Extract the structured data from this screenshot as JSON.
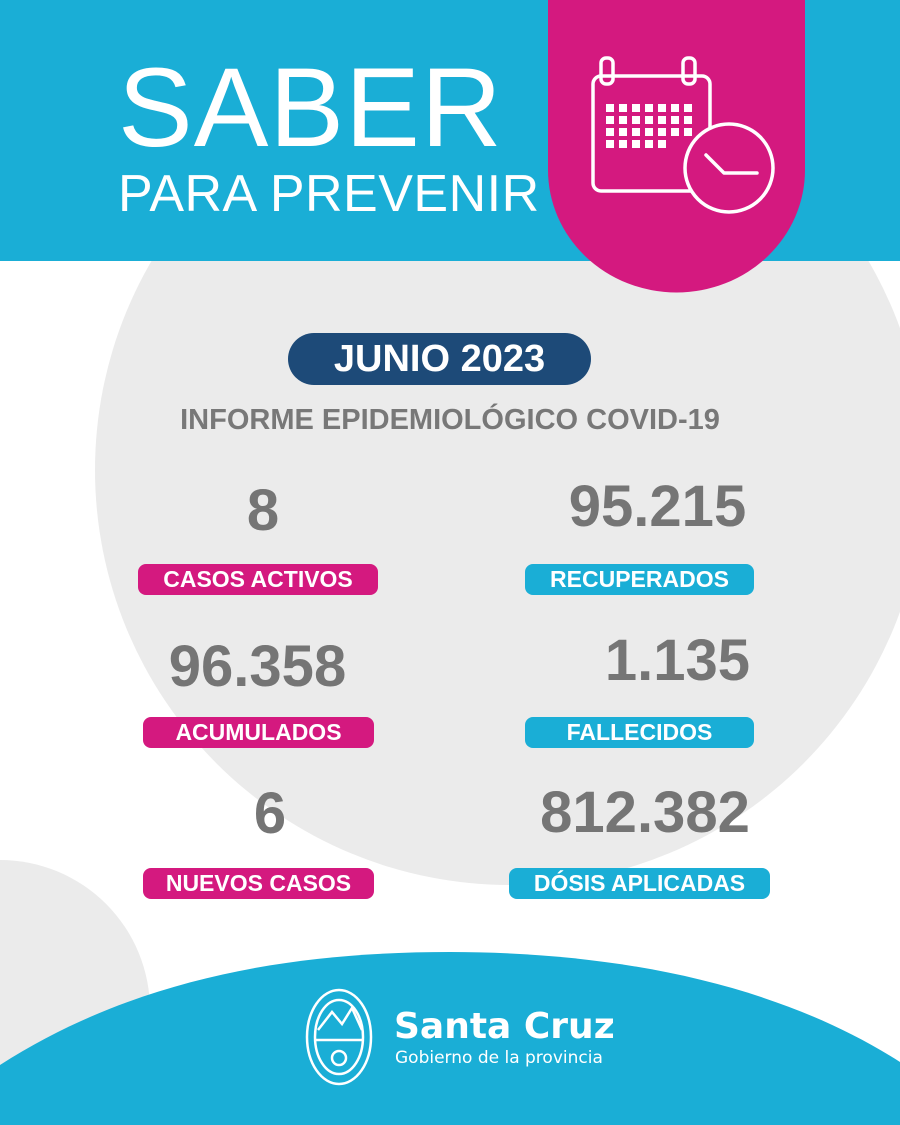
{
  "header": {
    "title": "SABER",
    "subtitle": "PARA PREVENIR"
  },
  "report": {
    "month": "JUNIO 2023",
    "heading": "INFORME EPIDEMIOLÓGICO COVID-19"
  },
  "stats": [
    {
      "value": "8",
      "label": "CASOS ACTIVOS"
    },
    {
      "value": "95.215",
      "label": "RECUPERADOS"
    },
    {
      "value": "96.358",
      "label": "ACUMULADOS"
    },
    {
      "value": "1.135",
      "label": "FALLECIDOS"
    },
    {
      "value": "6",
      "label": "NUEVOS CASOS"
    },
    {
      "value": "812.382",
      "label": "DÓSIS APLICADAS"
    }
  ],
  "footer": {
    "logo_name": "Santa Cruz",
    "logo_sub": "Gobierno de la provincia"
  },
  "icons": {
    "calendar": "calendar-clock-icon",
    "seal": "provincial-seal-icon"
  },
  "colors": {
    "cyan": "#1aaed6",
    "magenta": "#d4197f",
    "navy": "#1d4a78",
    "gray_text": "#757575",
    "light_gray_bg": "#ebebeb"
  }
}
